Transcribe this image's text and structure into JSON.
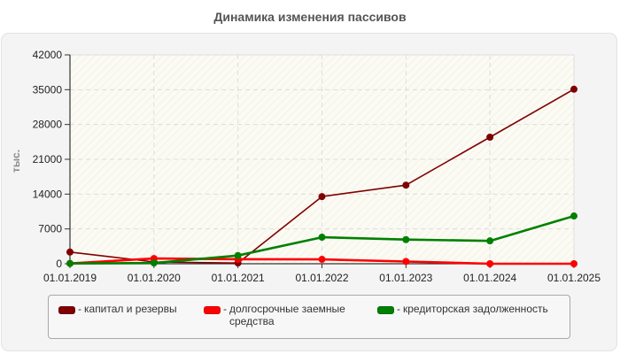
{
  "title": "Динамика изменения пассивов",
  "chart_data": {
    "type": "line",
    "title": "Динамика изменения пассивов",
    "xlabel": "",
    "ylabel": "тыс.",
    "ylim": [
      0,
      42000
    ],
    "yticks": [
      0,
      7000,
      14000,
      21000,
      28000,
      35000,
      42000
    ],
    "grid": true,
    "legend_position": "bottom",
    "categories": [
      "01.01.2019",
      "01.01.2020",
      "01.01.2021",
      "01.01.2022",
      "01.01.2023",
      "01.01.2024",
      "01.01.2025"
    ],
    "series": [
      {
        "name": "капитал и резервы",
        "color": "#800000",
        "width": 1.6,
        "values": [
          2350,
          350,
          150,
          13500,
          15800,
          25450,
          35100
        ]
      },
      {
        "name": "долгосрочные заемные средства",
        "color": "#ff0000",
        "width": 2.6,
        "values": [
          50,
          1050,
          900,
          880,
          450,
          0,
          0
        ]
      },
      {
        "name": "кредиторская задолженность",
        "color": "#008000",
        "width": 2.6,
        "values": [
          60,
          150,
          1650,
          5330,
          4850,
          4600,
          9600
        ]
      }
    ]
  },
  "legend": [
    {
      "label": "капитал и резервы",
      "color": "#800000"
    },
    {
      "label": "долгосрочные заемные\nсредства",
      "color": "#ff0000"
    },
    {
      "label": "кредиторская задолженность",
      "color": "#008000"
    }
  ],
  "legend_separator": "-"
}
